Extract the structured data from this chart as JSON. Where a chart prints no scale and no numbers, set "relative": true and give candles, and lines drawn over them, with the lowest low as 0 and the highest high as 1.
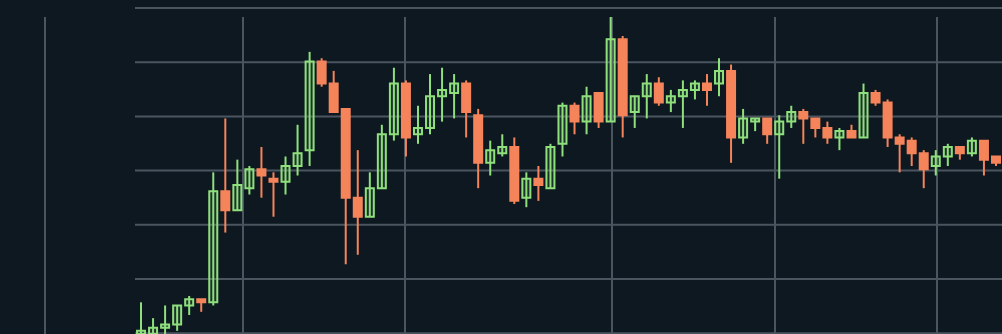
{
  "chart_data": {
    "type": "candlestick",
    "relative": true,
    "grid": true,
    "categories": [
      null,
      null,
      null,
      null,
      null,
      null,
      null,
      null,
      null,
      null,
      null,
      null,
      null,
      null,
      null,
      null,
      null,
      null,
      null,
      null,
      null,
      null,
      null,
      null,
      null,
      null,
      null,
      null,
      null,
      null,
      null,
      null,
      null,
      null,
      null,
      null,
      null,
      null,
      null,
      null,
      null,
      null,
      null,
      null,
      null,
      null,
      null,
      null,
      null,
      null,
      null,
      null,
      null,
      null,
      null,
      null,
      null,
      null,
      null,
      null,
      null,
      null,
      null,
      null,
      null,
      null,
      null,
      null,
      null,
      null,
      null,
      null
    ],
    "colors": [
      "#8fe07c",
      "#8fe07c",
      "#8fe07c",
      "#8fe07c",
      "#8fe07c",
      "#f5845a",
      "#8fe07c",
      "#f5845a",
      "#8fe07c",
      "#8fe07c",
      "#f5845a",
      "#f5845a",
      "#8fe07c",
      "#8fe07c",
      "#8fe07c",
      "#f5845a",
      "#f5845a",
      "#f5845a",
      "#f5845a",
      "#8fe07c",
      "#8fe07c",
      "#8fe07c",
      "#f5845a",
      "#8fe07c",
      "#8fe07c",
      "#8fe07c",
      "#8fe07c",
      "#f5845a",
      "#f5845a",
      "#8fe07c",
      "#8fe07c",
      "#f5845a",
      "#8fe07c",
      "#f5845a",
      "#8fe07c",
      "#8fe07c",
      "#f5845a",
      "#8fe07c",
      "#f5845a",
      "#8fe07c",
      "#f5845a",
      "#8fe07c",
      "#8fe07c",
      "#f5845a",
      "#8fe07c",
      "#8fe07c",
      "#8fe07c",
      "#f5845a",
      "#8fe07c",
      "#f5845a",
      "#8fe07c",
      "#8fe07c",
      "#f5845a",
      "#8fe07c",
      "#8fe07c",
      "#f5845a",
      "#f5845a",
      "#f5845a",
      "#8fe07c",
      "#f5845a",
      "#8fe07c",
      "#f5845a",
      "#f5845a",
      "#f5845a",
      "#f5845a",
      "#f5845a",
      "#8fe07c",
      "#8fe07c",
      "#f5845a",
      "#8fe07c",
      "#f5845a",
      "#f5845a"
    ],
    "ohlc": [
      [
        0,
        0.1,
        0,
        0.01
      ],
      [
        0,
        0.05,
        0,
        0.02
      ],
      [
        0.02,
        0.09,
        0,
        0.03
      ],
      [
        0.03,
        0.09,
        0.01,
        0.09
      ],
      [
        0.09,
        0.12,
        0.06,
        0.11
      ],
      [
        0.11,
        0.11,
        0.07,
        0.1
      ],
      [
        0.1,
        0.51,
        0.09,
        0.45
      ],
      [
        0.45,
        0.68,
        0.32,
        0.39
      ],
      [
        0.39,
        0.55,
        0.39,
        0.47
      ],
      [
        0.46,
        0.53,
        0.44,
        0.52
      ],
      [
        0.52,
        0.59,
        0.43,
        0.5
      ],
      [
        0.49,
        0.51,
        0.37,
        0.48
      ],
      [
        0.48,
        0.56,
        0.44,
        0.53
      ],
      [
        0.53,
        0.66,
        0.5,
        0.57
      ],
      [
        0.58,
        0.89,
        0.53,
        0.86
      ],
      [
        0.86,
        0.87,
        0.78,
        0.79
      ],
      [
        0.79,
        0.83,
        0.7,
        0.7
      ],
      [
        0.71,
        0.71,
        0.22,
        0.43
      ],
      [
        0.43,
        0.58,
        0.25,
        0.37
      ],
      [
        0.37,
        0.51,
        0.37,
        0.46
      ],
      [
        0.46,
        0.66,
        0.46,
        0.63
      ],
      [
        0.63,
        0.84,
        0.61,
        0.79
      ],
      [
        0.79,
        0.8,
        0.56,
        0.62
      ],
      [
        0.63,
        0.72,
        0.6,
        0.65
      ],
      [
        0.65,
        0.82,
        0.63,
        0.75
      ],
      [
        0.75,
        0.84,
        0.67,
        0.77
      ],
      [
        0.76,
        0.82,
        0.68,
        0.79
      ],
      [
        0.79,
        0.8,
        0.62,
        0.7
      ],
      [
        0.69,
        0.71,
        0.46,
        0.54
      ],
      [
        0.54,
        0.61,
        0.5,
        0.58
      ],
      [
        0.57,
        0.63,
        0.56,
        0.59
      ],
      [
        0.59,
        0.62,
        0.41,
        0.42
      ],
      [
        0.43,
        0.51,
        0.4,
        0.49
      ],
      [
        0.49,
        0.53,
        0.42,
        0.47
      ],
      [
        0.46,
        0.6,
        0.46,
        0.59
      ],
      [
        0.6,
        0.73,
        0.56,
        0.72
      ],
      [
        0.72,
        0.73,
        0.63,
        0.67
      ],
      [
        0.67,
        0.78,
        0.63,
        0.75
      ],
      [
        0.76,
        0.76,
        0.65,
        0.67
      ],
      [
        0.67,
        1.0,
        0.67,
        0.93
      ],
      [
        0.93,
        0.94,
        0.62,
        0.69
      ],
      [
        0.7,
        0.75,
        0.65,
        0.75
      ],
      [
        0.75,
        0.82,
        0.68,
        0.79
      ],
      [
        0.79,
        0.81,
        0.72,
        0.73
      ],
      [
        0.73,
        0.77,
        0.7,
        0.75
      ],
      [
        0.75,
        0.8,
        0.65,
        0.77
      ],
      [
        0.77,
        0.8,
        0.74,
        0.79
      ],
      [
        0.79,
        0.82,
        0.72,
        0.77
      ],
      [
        0.79,
        0.87,
        0.75,
        0.83
      ],
      [
        0.83,
        0.85,
        0.54,
        0.62
      ],
      [
        0.62,
        0.71,
        0.6,
        0.68
      ],
      [
        0.67,
        0.68,
        0.64,
        0.68
      ],
      [
        0.68,
        0.68,
        0.6,
        0.63
      ],
      [
        0.63,
        0.69,
        0.49,
        0.67
      ],
      [
        0.67,
        0.72,
        0.65,
        0.7
      ],
      [
        0.7,
        0.71,
        0.6,
        0.68
      ],
      [
        0.68,
        0.68,
        0.62,
        0.65
      ],
      [
        0.65,
        0.67,
        0.6,
        0.62
      ],
      [
        0.62,
        0.65,
        0.58,
        0.64
      ],
      [
        0.64,
        0.66,
        0.62,
        0.62
      ],
      [
        0.62,
        0.79,
        0.62,
        0.76
      ],
      [
        0.76,
        0.77,
        0.72,
        0.73
      ],
      [
        0.73,
        0.74,
        0.59,
        0.62
      ],
      [
        0.62,
        0.63,
        0.51,
        0.6
      ],
      [
        0.61,
        0.62,
        0.53,
        0.57
      ],
      [
        0.57,
        0.58,
        0.46,
        0.52
      ],
      [
        0.53,
        0.58,
        0.5,
        0.56
      ],
      [
        0.56,
        0.6,
        0.53,
        0.59
      ],
      [
        0.59,
        0.59,
        0.55,
        0.57
      ],
      [
        0.57,
        0.62,
        0.56,
        0.61
      ],
      [
        0.61,
        0.61,
        0.5,
        0.55
      ],
      [
        0.56,
        0.56,
        0.53,
        0.54
      ]
    ]
  }
}
